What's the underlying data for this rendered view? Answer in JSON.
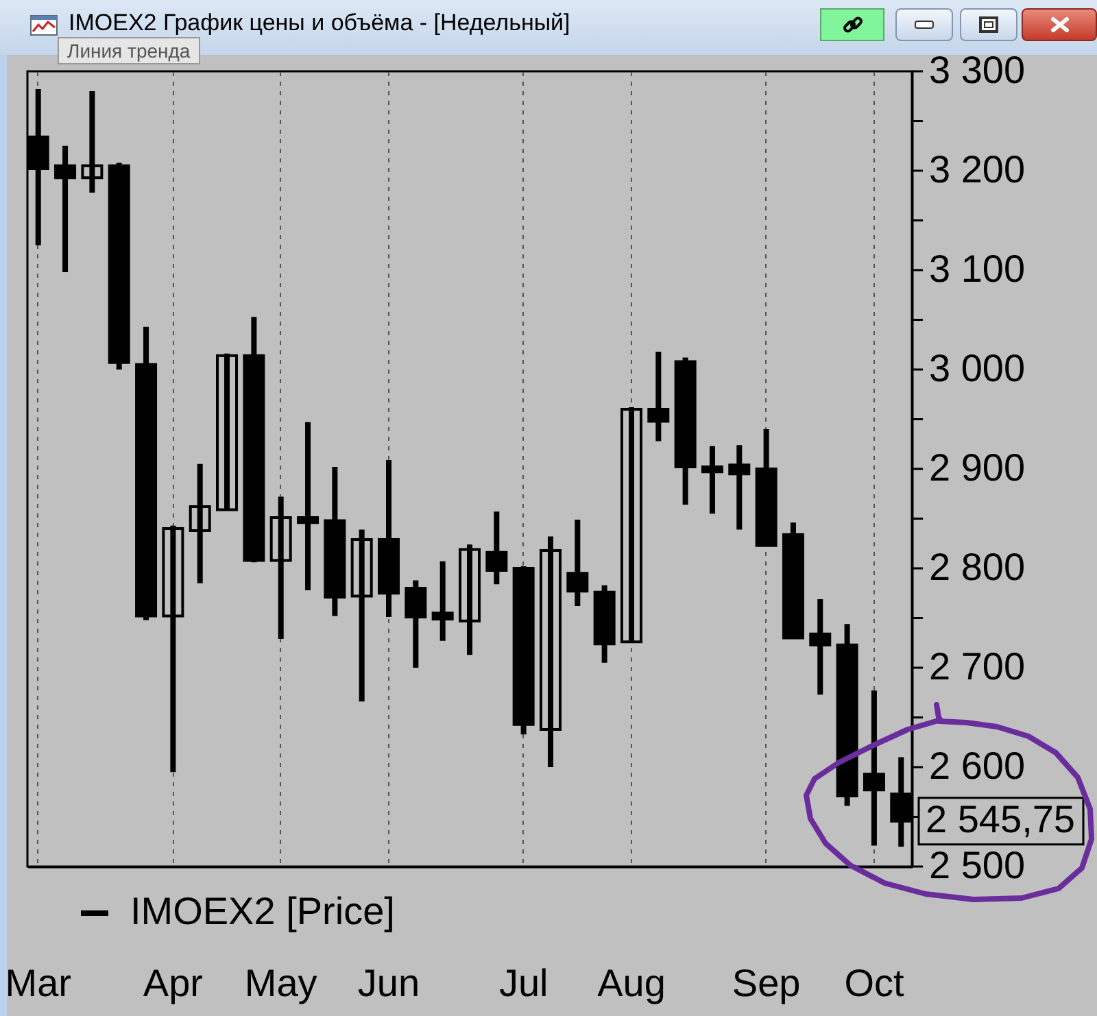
{
  "chart_data": {
    "type": "candlestick",
    "title": "IMOEX2 График цены и объёма - [Недельный]",
    "categories": [
      "Mar",
      null,
      null,
      null,
      null,
      "Apr",
      null,
      null,
      null,
      "May",
      null,
      null,
      null,
      "Jun",
      null,
      null,
      null,
      null,
      "Jul",
      null,
      null,
      null,
      "Aug",
      null,
      null,
      null,
      null,
      "Sep",
      null,
      null,
      null,
      "Oct",
      null
    ],
    "series": [
      {
        "name": "IMOEX2 [Price]",
        "color": "#000000",
        "ohlc": [
          [
            3234,
            3282,
            3125,
            3202
          ],
          [
            3205,
            3225,
            3098,
            3193
          ],
          [
            3193,
            3280,
            3178,
            3205
          ],
          [
            3205,
            3208,
            3000,
            3007
          ],
          [
            3005,
            3043,
            2748,
            2752
          ],
          [
            2752,
            2843,
            2595,
            2840
          ],
          [
            2838,
            2905,
            2785,
            2862
          ],
          [
            2859,
            3016,
            2858,
            3014
          ],
          [
            3014,
            3053,
            2806,
            2808
          ],
          [
            2808,
            2872,
            2729,
            2851
          ],
          [
            2851,
            2947,
            2778,
            2846
          ],
          [
            2848,
            2902,
            2752,
            2771
          ],
          [
            2772,
            2839,
            2666,
            2829
          ],
          [
            2829,
            2909,
            2751,
            2775
          ],
          [
            2780,
            2788,
            2700,
            2751
          ],
          [
            2755,
            2807,
            2727,
            2749
          ],
          [
            2747,
            2824,
            2713,
            2819
          ],
          [
            2816,
            2857,
            2784,
            2798
          ],
          [
            2800,
            2802,
            2633,
            2643
          ],
          [
            2638,
            2832,
            2600,
            2818
          ],
          [
            2795,
            2849,
            2762,
            2777
          ],
          [
            2776,
            2783,
            2705,
            2724
          ],
          [
            2726,
            2962,
            2725,
            2960
          ],
          [
            2960,
            3018,
            2928,
            2948
          ],
          [
            3008,
            3012,
            2864,
            2902
          ],
          [
            2902,
            2923,
            2855,
            2897
          ],
          [
            2904,
            2924,
            2839,
            2895
          ],
          [
            2900,
            2940,
            2822,
            2823
          ],
          [
            2834,
            2846,
            2729,
            2730
          ],
          [
            2734,
            2769,
            2673,
            2723
          ],
          [
            2723,
            2744,
            2561,
            2571
          ],
          [
            2593,
            2677,
            2521,
            2577
          ],
          [
            2573,
            2610,
            2520,
            2545.75
          ]
        ]
      }
    ],
    "ylim": [
      2500,
      3300
    ],
    "yticks": [
      {
        "value": 2500,
        "label": "2 500"
      },
      {
        "value": 2550,
        "label": null
      },
      {
        "value": 2600,
        "label": "2 600"
      },
      {
        "value": 2650,
        "label": null
      },
      {
        "value": 2700,
        "label": "2 700"
      },
      {
        "value": 2750,
        "label": null
      },
      {
        "value": 2800,
        "label": "2 800"
      },
      {
        "value": 2850,
        "label": null
      },
      {
        "value": 2900,
        "label": "2 900"
      },
      {
        "value": 2950,
        "label": null
      },
      {
        "value": 3000,
        "label": "3 000"
      },
      {
        "value": 3050,
        "label": null
      },
      {
        "value": 3100,
        "label": "3 100"
      },
      {
        "value": 3150,
        "label": null
      },
      {
        "value": 3200,
        "label": "3 200"
      },
      {
        "value": 3250,
        "label": null
      },
      {
        "value": 3300,
        "label": "3 300"
      }
    ],
    "grid": "x",
    "legend": "bottom left",
    "annotations": [
      "Линия тренда",
      "2 545,75"
    ]
  }
}
